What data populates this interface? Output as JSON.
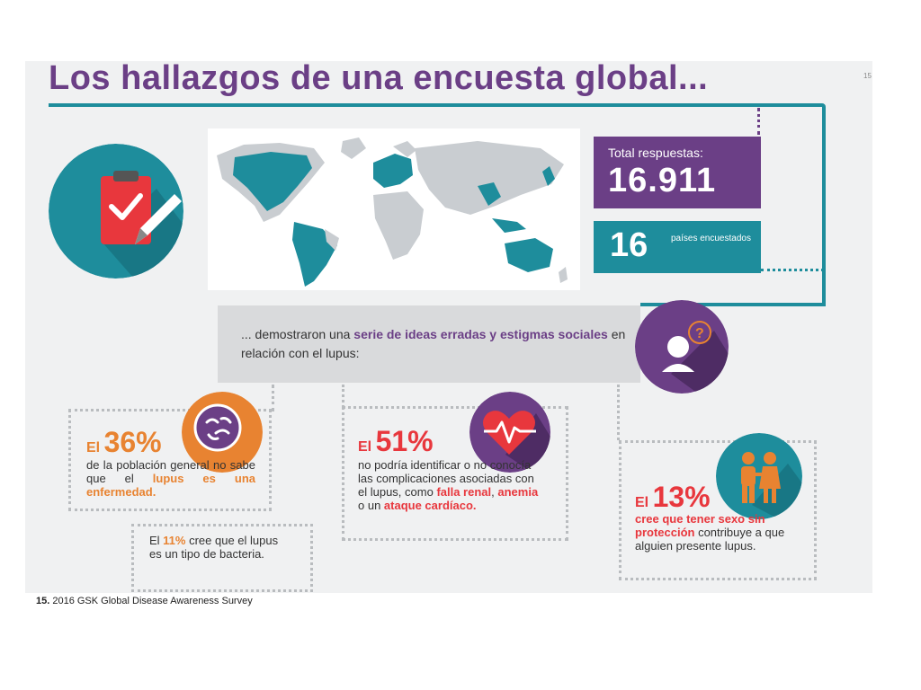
{
  "title": "Los hallazgos de una encuesta global...",
  "title_ref": "15",
  "total": {
    "label": "Total respuestas:",
    "value": "16.911"
  },
  "countries": {
    "value": "16",
    "label": "países encuestados"
  },
  "banner": {
    "part1": "... demostraron una ",
    "highlight1": "serie de ideas erradas y estigmas sociales",
    "part2": " en relación con el lupus:"
  },
  "stat36": {
    "el": "El ",
    "percent": "36%",
    "text1": "de la población general no sabe que el ",
    "highlight": "lupus es una enfermedad."
  },
  "stat11": {
    "el": "El ",
    "percent": "11%",
    "text": " cree que el lupus es un tipo de bacteria."
  },
  "stat51": {
    "el": "El ",
    "percent": "51%",
    "text1": "no podría identificar o no conocía las complicaciones asociadas con el lupus, como ",
    "h1": "falla renal",
    "sep": ", ",
    "h2": "anemia",
    "text2": " o un ",
    "h3": "ataque cardíaco."
  },
  "stat13": {
    "el": "El ",
    "percent": "13%",
    "highlight": "cree que tener sexo sin protección",
    "text": " contribuye a que alguien presente lupus."
  },
  "footnote": {
    "num": "15.",
    "text": " 2016 GSK Global Disease Awareness Survey"
  },
  "colors": {
    "purple": "#6b3f86",
    "teal": "#1e8d9c",
    "orange": "#e88331",
    "red": "#e8373d"
  },
  "icons": [
    "clipboard-checklist-icon",
    "person-question-icon",
    "bacteria-icon",
    "heart-pulse-icon",
    "couple-icon"
  ]
}
